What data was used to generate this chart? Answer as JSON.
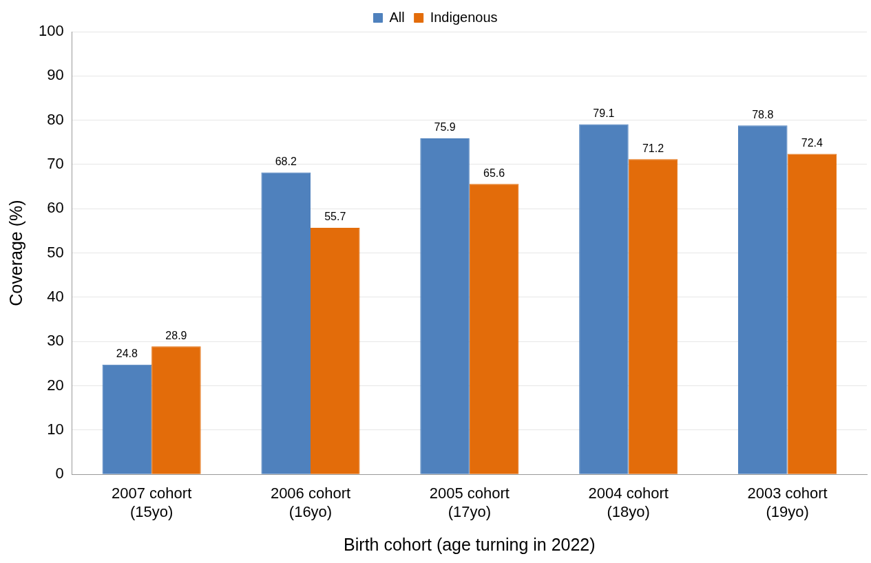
{
  "chart_data": {
    "type": "bar",
    "xlabel": "Birth cohort (age turning in 2022)",
    "ylabel": "Coverage (%)",
    "categories": [
      "2007 cohort\n(15yo)",
      "2006 cohort\n(16yo)",
      "2005 cohort\n(17yo)",
      "2004 cohort\n(18yo)",
      "2003 cohort\n(19yo)"
    ],
    "series": [
      {
        "name": "All",
        "color": "#4f81bd",
        "values": [
          24.8,
          68.2,
          75.9,
          79.1,
          78.8
        ]
      },
      {
        "name": "Indigenous",
        "color": "#e36c0a",
        "values": [
          28.9,
          55.7,
          65.6,
          71.2,
          72.4
        ]
      }
    ],
    "ylim": [
      0,
      100
    ],
    "yticks": [
      0,
      10,
      20,
      30,
      40,
      50,
      60,
      70,
      80,
      90,
      100
    ],
    "grid": "y",
    "legend": "top",
    "data_labels": true
  }
}
